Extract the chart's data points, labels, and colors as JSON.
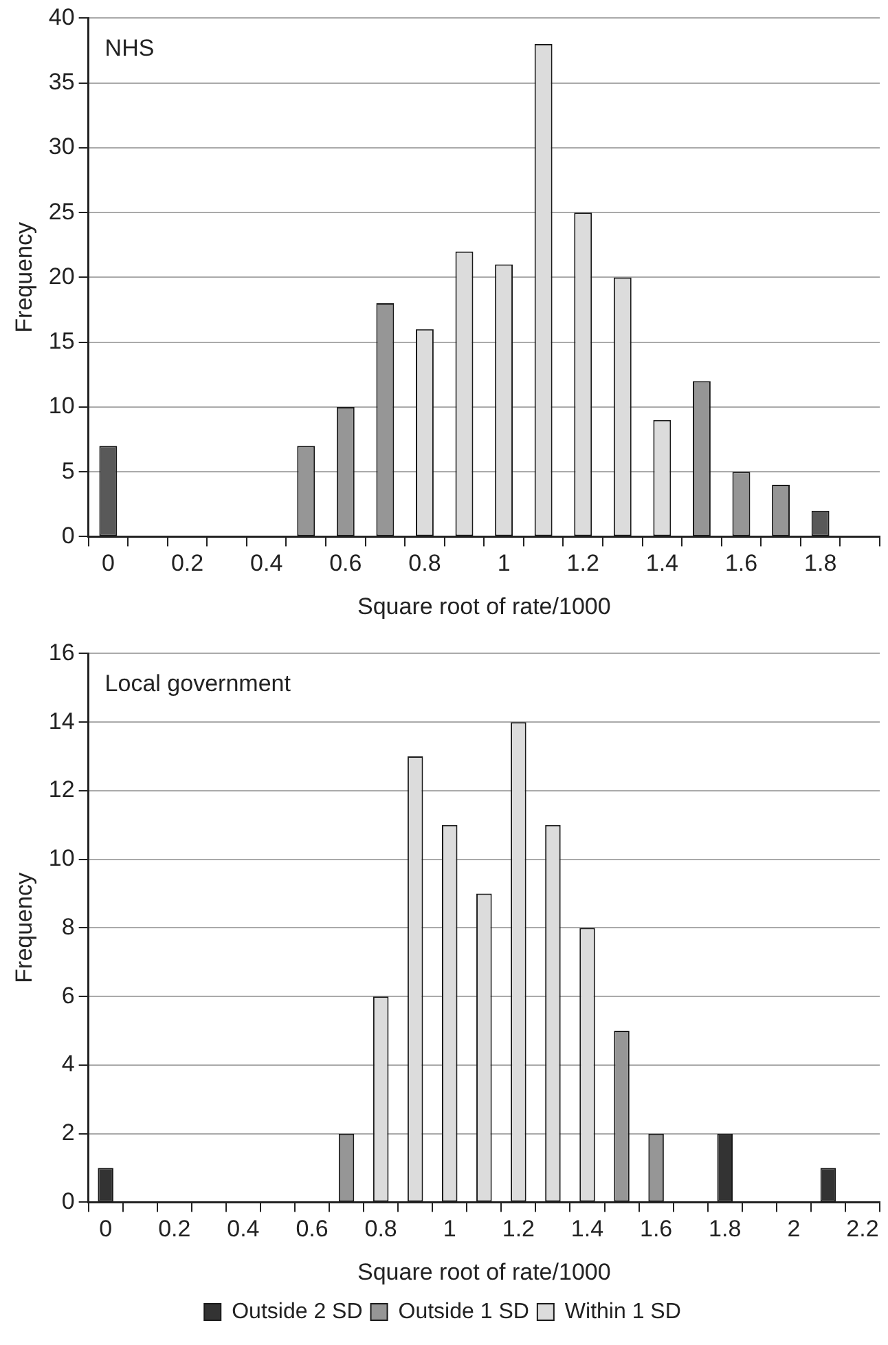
{
  "chart_data": [
    {
      "type": "bar",
      "title": "NHS",
      "xlabel": "Square root of rate/1000",
      "ylabel": "Frequency",
      "categories": [
        "0",
        null,
        "0.2",
        null,
        "0.4",
        null,
        "0.6",
        null,
        "0.8",
        null,
        "1",
        null,
        "1.2",
        null,
        "1.4",
        null,
        "1.6",
        null,
        "1.8",
        null
      ],
      "series": [
        {
          "color": "#595959",
          "values": [
            7,
            null,
            null,
            null,
            null,
            null,
            null,
            null,
            null,
            null,
            null,
            null,
            null,
            null,
            null,
            null,
            null,
            null,
            2,
            null
          ]
        },
        {
          "color": "#969696",
          "values": [
            null,
            null,
            null,
            null,
            null,
            7,
            10,
            18,
            null,
            null,
            null,
            null,
            null,
            null,
            null,
            12,
            5,
            4,
            null,
            null
          ]
        },
        {
          "color": "#dcdcdc",
          "values": [
            null,
            null,
            null,
            null,
            null,
            null,
            null,
            null,
            16,
            22,
            21,
            38,
            25,
            20,
            9,
            null,
            null,
            null,
            null,
            null
          ]
        }
      ],
      "stacked": true,
      "ylim": [
        0,
        40
      ],
      "yticks": [
        0,
        5,
        10,
        15,
        20,
        25,
        30,
        35,
        40
      ],
      "grid": "y",
      "legend": false
    },
    {
      "type": "bar",
      "title": "Local government",
      "xlabel": "Square root of rate/1000",
      "ylabel": "Frequency",
      "categories": [
        "0",
        null,
        "0.2",
        null,
        "0.4",
        null,
        "0.6",
        null,
        "0.8",
        null,
        "1",
        null,
        "1.2",
        null,
        "1.4",
        null,
        "1.6",
        null,
        "1.8",
        null,
        "2",
        null,
        "2.2"
      ],
      "series": [
        {
          "name": "Outside 2 SD",
          "color": "#333333",
          "values": [
            1,
            null,
            null,
            null,
            null,
            null,
            null,
            null,
            null,
            null,
            null,
            null,
            null,
            null,
            null,
            null,
            null,
            null,
            2,
            null,
            null,
            1,
            null
          ]
        },
        {
          "name": "Outside 1 SD",
          "color": "#969696",
          "values": [
            null,
            null,
            null,
            null,
            null,
            null,
            null,
            2,
            null,
            null,
            null,
            null,
            null,
            null,
            null,
            5,
            2,
            null,
            null,
            null,
            null,
            null,
            null
          ]
        },
        {
          "name": "Within 1 SD",
          "color": "#dcdcdc",
          "values": [
            null,
            null,
            null,
            null,
            null,
            null,
            null,
            null,
            6,
            13,
            11,
            9,
            14,
            11,
            8,
            null,
            null,
            null,
            null,
            null,
            null,
            null,
            null
          ]
        }
      ],
      "stacked": true,
      "ylim": [
        0,
        16
      ],
      "yticks": [
        0,
        2,
        4,
        6,
        8,
        10,
        12,
        14,
        16
      ],
      "grid": "y",
      "legend": "bottom"
    }
  ]
}
